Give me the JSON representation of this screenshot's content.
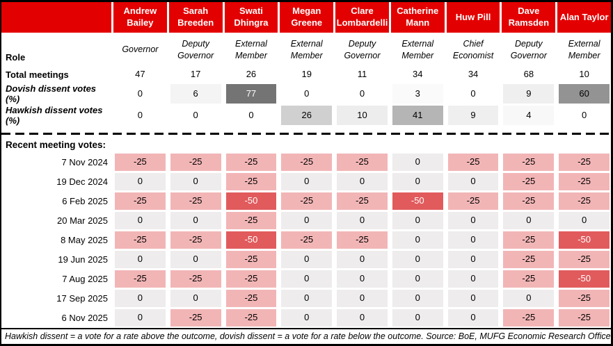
{
  "chart_data": {
    "type": "table",
    "columns": [
      {
        "name": "Andrew Bailey",
        "role": "Governor"
      },
      {
        "name": "Sarah Breeden",
        "role": "Deputy Governor"
      },
      {
        "name": "Swati Dhingra",
        "role": "External Member"
      },
      {
        "name": "Megan Greene",
        "role": "External Member"
      },
      {
        "name": "Clare Lombardelli",
        "role": "Deputy Governor"
      },
      {
        "name": "Catherine Mann",
        "role": "External Member"
      },
      {
        "name": "Huw Pill",
        "role": "Chief Economist"
      },
      {
        "name": "Dave Ramsden",
        "role": "Deputy Governor"
      },
      {
        "name": "Alan Taylor",
        "role": "External Member"
      }
    ],
    "summary_rows": [
      {
        "label": "Total meetings",
        "italic": false,
        "shade": "none",
        "values": [
          47,
          17,
          26,
          19,
          11,
          34,
          34,
          68,
          10
        ]
      },
      {
        "label": "Dovish dissent votes (%)",
        "italic": true,
        "shade": "gray",
        "values": [
          0,
          6,
          77,
          0,
          0,
          3,
          0,
          9,
          60
        ]
      },
      {
        "label": "Hawkish dissent votes (%)",
        "italic": true,
        "shade": "gray",
        "values": [
          0,
          0,
          0,
          26,
          10,
          41,
          9,
          4,
          0
        ]
      }
    ],
    "meetings": [
      {
        "date": "7 Nov 2024",
        "votes": [
          -25,
          -25,
          -25,
          -25,
          -25,
          0,
          -25,
          -25,
          -25
        ]
      },
      {
        "date": "19 Dec 2024",
        "votes": [
          0,
          0,
          -25,
          0,
          0,
          0,
          0,
          -25,
          -25
        ]
      },
      {
        "date": "6 Feb 2025",
        "votes": [
          -25,
          -25,
          -50,
          -25,
          -25,
          -50,
          -25,
          -25,
          -25
        ]
      },
      {
        "date": "20 Mar 2025",
        "votes": [
          0,
          0,
          -25,
          0,
          0,
          0,
          0,
          0,
          0
        ]
      },
      {
        "date": "8 May 2025",
        "votes": [
          -25,
          -25,
          -50,
          -25,
          -25,
          0,
          0,
          -25,
          -50
        ]
      },
      {
        "date": "19 Jun 2025",
        "votes": [
          0,
          0,
          -25,
          0,
          0,
          0,
          0,
          -25,
          -25
        ]
      },
      {
        "date": "7 Aug 2025",
        "votes": [
          -25,
          -25,
          -25,
          0,
          0,
          0,
          0,
          -25,
          -50
        ]
      },
      {
        "date": "17 Sep 2025",
        "votes": [
          0,
          0,
          -25,
          0,
          0,
          0,
          0,
          0,
          -25
        ]
      },
      {
        "date": "6 Nov 2025",
        "votes": [
          0,
          -25,
          -25,
          0,
          0,
          0,
          0,
          -25,
          -25
        ]
      }
    ]
  },
  "labels": {
    "role": "Role"
  },
  "votes_section_title": "Recent meeting votes:",
  "footnote": "Hawkish dissent = a vote for a rate above the outcome, dovish dissent = a vote for a rate below the outcome. Source: BoE, MUFG Economic Research Office",
  "colors": {
    "header_red": "#e30000",
    "cut25_bg": "#f2b5b6",
    "cut50_bg": "#e15b5d",
    "hold_bg": "#eeecec",
    "cut50_text": "#ffffff"
  }
}
